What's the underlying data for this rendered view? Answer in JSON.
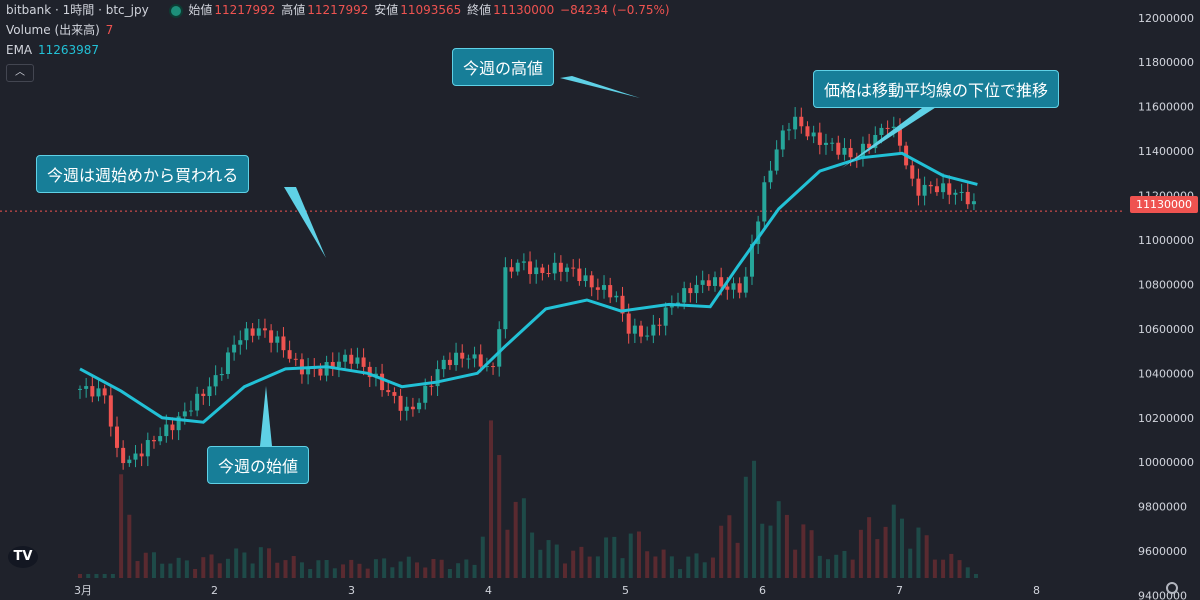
{
  "header": {
    "symbol_line": "bitbank · 1時間 · btc_jpy",
    "open_label": "始値",
    "open_value": "11217992",
    "high_label": "高値",
    "high_value": "11217992",
    "low_label": "安値",
    "low_value": "11093565",
    "close_label": "終値",
    "close_value": "11130000",
    "change": "−84234 (−0.75%)"
  },
  "indicators": {
    "volume_label": "Volume (出来高)",
    "volume_value": "7",
    "ema_label": "EMA",
    "ema_value": "11263987"
  },
  "annotations": {
    "week_open": "今週の始値",
    "week_buying": "今週は週始めから買われる",
    "week_high": "今週の高値",
    "below_ema": "価格は移動平均線の下位で推移"
  },
  "last_price_tag": "11130000",
  "colors": {
    "up": "#26a69a",
    "down": "#ef5350",
    "ema": "#22c1d6",
    "background": "#1f222b"
  },
  "icons": {
    "logo": "tradingview-logo",
    "settings": "gear-icon",
    "collapse": "chevron-up-icon"
  },
  "chart_data": {
    "type": "candlestick",
    "price_axis": {
      "ticks": [
        12000000,
        11800000,
        11600000,
        11400000,
        11200000,
        11000000,
        10800000,
        10600000,
        10400000,
        10200000,
        10000000,
        9800000,
        9600000,
        9400000
      ],
      "range": [
        9380000,
        12080000
      ]
    },
    "time_axis": [
      "3月",
      "2",
      "3",
      "4",
      "5",
      "6",
      "7",
      "8"
    ],
    "last_price": 11130000,
    "ema_points": [
      [
        0,
        10420000
      ],
      [
        0.3,
        10320000
      ],
      [
        0.6,
        10200000
      ],
      [
        0.9,
        10180000
      ],
      [
        1.2,
        10340000
      ],
      [
        1.5,
        10420000
      ],
      [
        1.8,
        10430000
      ],
      [
        2.1,
        10400000
      ],
      [
        2.35,
        10340000
      ],
      [
        2.6,
        10360000
      ],
      [
        2.9,
        10400000
      ],
      [
        3.1,
        10520000
      ],
      [
        3.4,
        10690000
      ],
      [
        3.7,
        10730000
      ],
      [
        3.95,
        10680000
      ],
      [
        4.3,
        10710000
      ],
      [
        4.6,
        10700000
      ],
      [
        4.8,
        10880000
      ],
      [
        5.1,
        11140000
      ],
      [
        5.4,
        11310000
      ],
      [
        5.7,
        11370000
      ],
      [
        6.0,
        11390000
      ],
      [
        6.3,
        11290000
      ],
      [
        6.55,
        11250000
      ]
    ],
    "candle_points": [
      [
        0.0,
        10330000
      ],
      [
        0.1,
        10320000
      ],
      [
        0.2,
        10300000
      ],
      [
        0.25,
        10050000
      ],
      [
        0.35,
        10000000
      ],
      [
        0.45,
        10050000
      ],
      [
        0.55,
        10110000
      ],
      [
        0.7,
        10180000
      ],
      [
        0.85,
        10280000
      ],
      [
        1.0,
        10380000
      ],
      [
        1.15,
        10560000
      ],
      [
        1.3,
        10600000
      ],
      [
        1.45,
        10540000
      ],
      [
        1.6,
        10420000
      ],
      [
        1.75,
        10410000
      ],
      [
        1.9,
        10460000
      ],
      [
        2.0,
        10470000
      ],
      [
        2.15,
        10380000
      ],
      [
        2.3,
        10280000
      ],
      [
        2.4,
        10220000
      ],
      [
        2.5,
        10300000
      ],
      [
        2.65,
        10450000
      ],
      [
        2.8,
        10480000
      ],
      [
        2.95,
        10450000
      ],
      [
        3.0,
        10370000
      ],
      [
        3.05,
        10560000
      ],
      [
        3.1,
        10850000
      ],
      [
        3.2,
        10900000
      ],
      [
        3.35,
        10850000
      ],
      [
        3.5,
        10880000
      ],
      [
        3.6,
        10860000
      ],
      [
        3.75,
        10790000
      ],
      [
        3.9,
        10760000
      ],
      [
        4.0,
        10600000
      ],
      [
        4.15,
        10570000
      ],
      [
        4.3,
        10700000
      ],
      [
        4.45,
        10780000
      ],
      [
        4.6,
        10820000
      ],
      [
        4.75,
        10780000
      ],
      [
        4.85,
        10790000
      ],
      [
        4.9,
        10960000
      ],
      [
        5.0,
        11250000
      ],
      [
        5.1,
        11440000
      ],
      [
        5.2,
        11550000
      ],
      [
        5.35,
        11460000
      ],
      [
        5.5,
        11420000
      ],
      [
        5.65,
        11370000
      ],
      [
        5.8,
        11460000
      ],
      [
        5.9,
        11530000
      ],
      [
        6.0,
        11420000
      ],
      [
        6.05,
        11290000
      ],
      [
        6.1,
        11220000
      ],
      [
        6.2,
        11240000
      ],
      [
        6.3,
        11230000
      ],
      [
        6.4,
        11210000
      ],
      [
        6.5,
        11180000
      ],
      [
        6.55,
        11130000
      ]
    ],
    "volume_points": [
      [
        0.25,
        130
      ],
      [
        0.45,
        30
      ],
      [
        0.7,
        20
      ],
      [
        1.0,
        25
      ],
      [
        1.3,
        35
      ],
      [
        1.6,
        20
      ],
      [
        2.0,
        18
      ],
      [
        2.3,
        22
      ],
      [
        2.6,
        20
      ],
      [
        2.9,
        18
      ],
      [
        3.0,
        165
      ],
      [
        3.1,
        115
      ],
      [
        3.4,
        40
      ],
      [
        3.7,
        30
      ],
      [
        4.0,
        55
      ],
      [
        4.3,
        25
      ],
      [
        4.6,
        25
      ],
      [
        4.9,
        130
      ],
      [
        5.0,
        80
      ],
      [
        5.2,
        75
      ],
      [
        5.5,
        20
      ],
      [
        5.8,
        70
      ],
      [
        6.0,
        75
      ],
      [
        6.3,
        25
      ],
      [
        6.5,
        22
      ]
    ]
  }
}
